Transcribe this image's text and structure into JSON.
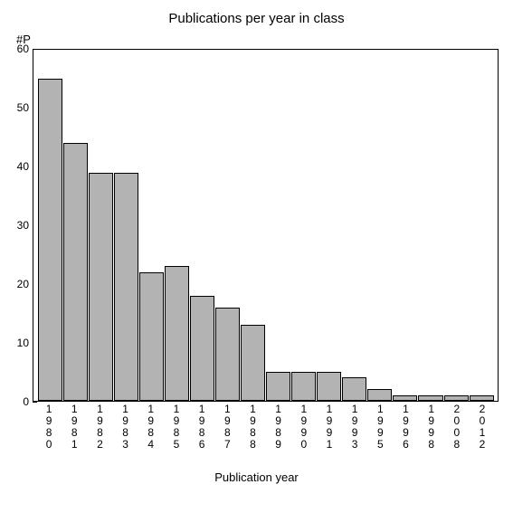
{
  "chart": {
    "type": "bar",
    "title": "Publications per year in class",
    "title_fontsize": 15,
    "ylabel_top": "#P",
    "xlabel": "Publication year",
    "label_fontsize": 13,
    "categories": [
      "1980",
      "1981",
      "1982",
      "1983",
      "1984",
      "1985",
      "1986",
      "1987",
      "1988",
      "1989",
      "1990",
      "1991",
      "1993",
      "1995",
      "1996",
      "1998",
      "2008",
      "2012"
    ],
    "values": [
      55,
      44,
      39,
      39,
      22,
      23,
      18,
      16,
      13,
      5,
      5,
      5,
      4,
      2,
      1,
      1,
      1,
      1
    ],
    "bar_fill": "#b3b3b3",
    "bar_border": "#000000",
    "ylim": [
      0,
      60
    ],
    "yticks": [
      0,
      10,
      20,
      30,
      40,
      50,
      60
    ],
    "tick_fontsize": 12,
    "background_color": "#ffffff",
    "plot_border_color": "#000000",
    "bar_width": 0.94
  }
}
